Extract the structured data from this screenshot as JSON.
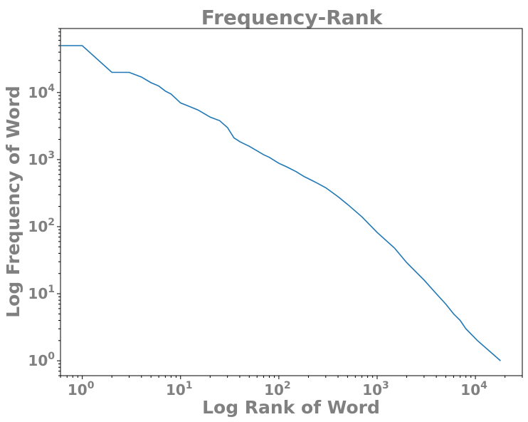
{
  "chart_data": {
    "type": "line",
    "title": "Frequency-Rank",
    "xlabel": "Log Rank of Word",
    "ylabel": "Log Frequency of Word",
    "xscale": "log",
    "yscale": "log",
    "xlim": [
      0.6,
      30000
    ],
    "ylim": [
      0.6,
      90000
    ],
    "grid": false,
    "line_color": "#1f77b4",
    "text_color": "#808080",
    "xticks": [
      {
        "base": "10",
        "exp": "0",
        "value": 1
      },
      {
        "base": "10",
        "exp": "1",
        "value": 10
      },
      {
        "base": "10",
        "exp": "2",
        "value": 100
      },
      {
        "base": "10",
        "exp": "3",
        "value": 1000
      },
      {
        "base": "10",
        "exp": "4",
        "value": 10000
      }
    ],
    "yticks": [
      {
        "base": "10",
        "exp": "0",
        "value": 1
      },
      {
        "base": "10",
        "exp": "1",
        "value": 10
      },
      {
        "base": "10",
        "exp": "2",
        "value": 100
      },
      {
        "base": "10",
        "exp": "3",
        "value": 1000
      },
      {
        "base": "10",
        "exp": "4",
        "value": 10000
      }
    ],
    "series": [
      {
        "x": [
          0.6,
          1,
          2,
          3,
          4,
          5,
          6,
          7,
          8,
          10,
          12,
          15,
          18,
          20,
          25,
          30,
          35,
          38,
          40,
          45,
          50,
          60,
          70,
          80,
          100,
          120,
          150,
          180,
          200,
          250,
          300,
          400,
          500,
          700,
          1000,
          1500,
          2000,
          3000,
          4000,
          5000,
          6000,
          7000,
          8000,
          10500,
          18000
        ],
        "y": [
          50000,
          50000,
          20000,
          20000,
          17000,
          14000,
          12500,
          10500,
          9500,
          7000,
          6300,
          5500,
          4700,
          4300,
          3800,
          3000,
          2100,
          1950,
          1850,
          1700,
          1580,
          1350,
          1180,
          1080,
          880,
          780,
          660,
          560,
          520,
          440,
          380,
          280,
          215,
          140,
          82,
          48,
          29,
          16,
          10,
          7,
          5,
          4,
          3,
          2,
          1
        ]
      }
    ]
  }
}
